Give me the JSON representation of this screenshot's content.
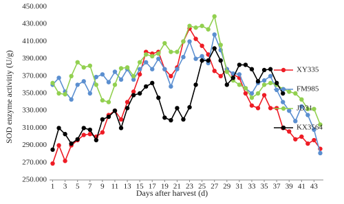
{
  "chart_data": {
    "type": "line",
    "x_label": "Days after harvest (d)",
    "y_label": "SOD enzyme activitiy (U/g)",
    "x": [
      1,
      2,
      3,
      4,
      5,
      6,
      7,
      8,
      9,
      10,
      11,
      12,
      13,
      14,
      15,
      16,
      17,
      18,
      19,
      20,
      21,
      22,
      23,
      24,
      25,
      26,
      27,
      28,
      29,
      30,
      31,
      32,
      33,
      34,
      35,
      36,
      37,
      38,
      39,
      40,
      41,
      42,
      43,
      44
    ],
    "xlim": [
      0.5,
      44.5
    ],
    "xticks": [
      1,
      3,
      5,
      7,
      9,
      11,
      13,
      15,
      17,
      19,
      21,
      23,
      25,
      27,
      29,
      31,
      33,
      35,
      37,
      39,
      41,
      43
    ],
    "ylim": [
      250,
      450
    ],
    "yticks": [
      {
        "value": 250,
        "label": "250.000"
      },
      {
        "value": 270,
        "label": "270.000"
      },
      {
        "value": 290,
        "label": "290.000"
      },
      {
        "value": 310,
        "label": "310.000"
      },
      {
        "value": 330,
        "label": "330.000"
      },
      {
        "value": 350,
        "label": "350.000"
      },
      {
        "value": 370,
        "label": "370.000"
      },
      {
        "value": 390,
        "label": "390.000"
      },
      {
        "value": 410,
        "label": "410.000"
      },
      {
        "value": 430,
        "label": "430.000"
      },
      {
        "value": 450,
        "label": "450.000"
      }
    ],
    "legend": "right",
    "series": [
      {
        "name": "XY335",
        "color": "#ee1c25",
        "values": [
          269,
          290,
          272,
          290,
          296,
          302,
          303,
          300,
          305,
          325,
          330,
          320,
          340,
          352,
          372,
          398,
          396,
          398,
          378,
          370,
          380,
          410,
          425,
          413,
          405,
          395,
          376,
          370,
          378,
          372,
          368,
          350,
          336,
          333,
          348,
          333,
          333,
          310,
          306,
          297,
          300,
          292,
          296,
          286
        ]
      },
      {
        "name": "FM985",
        "color": "#5b8fd0",
        "values": [
          360,
          368,
          352,
          343,
          360,
          364,
          350,
          369,
          372,
          363,
          375,
          366,
          378,
          366,
          378,
          386,
          378,
          390,
          378,
          358,
          378,
          392,
          410,
          390,
          393,
          385,
          418,
          400,
          378,
          373,
          372,
          356,
          350,
          362,
          365,
          370,
          354,
          340,
          330,
          318,
          335,
          325,
          308,
          281
        ]
      },
      {
        "name": "JD31",
        "color": "#92d050",
        "values": [
          362,
          350,
          349,
          370,
          386,
          380,
          382,
          360,
          342,
          340,
          360,
          379,
          380,
          370,
          386,
          395,
          393,
          396,
          408,
          398,
          398,
          410,
          428,
          426,
          428,
          424,
          439,
          406,
          375,
          365,
          360,
          356,
          345,
          350,
          360,
          362,
          360,
          355,
          352,
          350,
          343,
          332,
          332,
          314
        ]
      },
      {
        "name": "KX3564",
        "color": "#000000",
        "values": [
          285,
          310,
          303,
          292,
          297,
          310,
          308,
          296,
          320,
          323,
          330,
          310,
          333,
          348,
          350,
          358,
          362,
          345,
          322,
          319,
          333,
          320,
          334,
          360,
          388,
          388,
          402,
          388,
          360,
          368,
          383,
          383,
          378,
          364,
          377,
          378,
          362,
          350,
          null,
          null,
          null,
          null,
          null,
          null
        ]
      }
    ]
  }
}
